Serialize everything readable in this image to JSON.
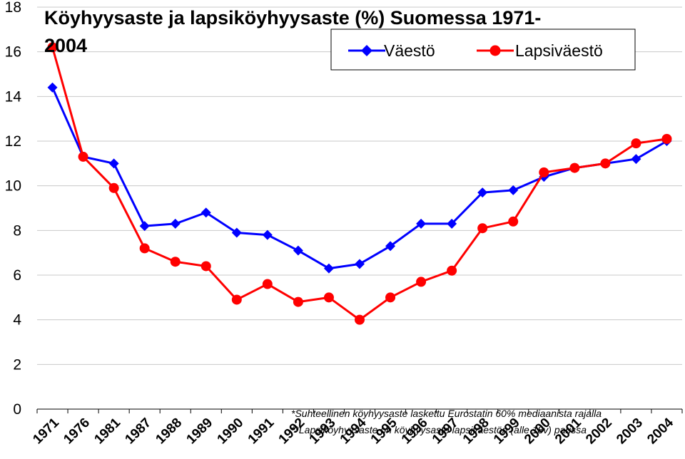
{
  "chart_data": {
    "type": "line",
    "title_line1": "Köyhyysaste ja lapsiköyhyysaste (%) Suomessa 1971-",
    "title_line2": "2004",
    "categories": [
      "1971",
      "1976",
      "1981",
      "1987",
      "1988",
      "1989",
      "1990",
      "1991",
      "1992",
      "1993",
      "1994",
      "1995",
      "1996",
      "1997",
      "1998",
      "1999",
      "2000",
      "2001",
      "2002",
      "2003",
      "2004"
    ],
    "ylim": [
      0,
      18
    ],
    "yticks": [
      "0",
      "2",
      "4",
      "6",
      "8",
      "10",
      "12",
      "14",
      "16",
      "18"
    ],
    "grid": true,
    "legend_position": "top-right",
    "series": [
      {
        "name": "Väestö",
        "color": "#0000ff",
        "marker": "diamond",
        "values": [
          14.4,
          11.3,
          11.0,
          8.2,
          8.3,
          8.8,
          7.9,
          7.8,
          7.1,
          6.3,
          6.5,
          7.3,
          8.3,
          8.3,
          9.7,
          9.8,
          10.4,
          10.8,
          11.0,
          11.2,
          12.0
        ]
      },
      {
        "name": "Lapsiväestö",
        "color": "#ff0000",
        "marker": "circle",
        "values": [
          16.2,
          11.3,
          9.9,
          7.2,
          6.6,
          6.4,
          4.9,
          5.6,
          4.8,
          5.0,
          4.0,
          5.0,
          5.7,
          6.2,
          8.1,
          8.4,
          10.6,
          10.8,
          11.0,
          11.9,
          12.1
        ]
      }
    ],
    "notes": [
      "*Suhteellinen köyhyysaste laskettu Eurostatin 60% mediaanista rajalla",
      "**Lapsiköyhyysaste on köyhyysaste lapsiväestön (alle 18v) parissa"
    ]
  }
}
